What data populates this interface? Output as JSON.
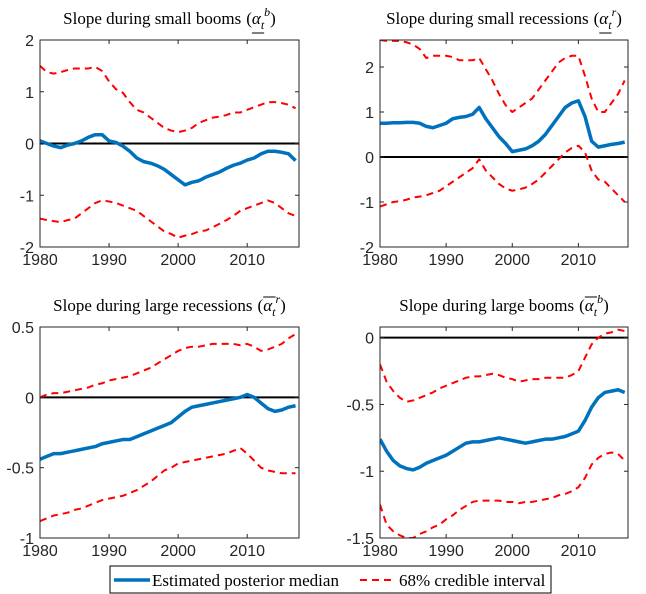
{
  "chart_data": [
    {
      "type": "line",
      "title": "Slope during small booms",
      "symbol": {
        "open": "(",
        "base": "α",
        "sub": "t",
        "sup": "b",
        "bar": "under",
        "close": ")"
      },
      "x": [
        1980,
        1981,
        1982,
        1983,
        1984,
        1985,
        1986,
        1987,
        1988,
        1989,
        1990,
        1991,
        1992,
        1993,
        1994,
        1995,
        1996,
        1997,
        1998,
        1999,
        2000,
        2001,
        2002,
        2003,
        2004,
        2005,
        2006,
        2007,
        2008,
        2009,
        2010,
        2011,
        2012,
        2013,
        2014,
        2015,
        2016,
        2017
      ],
      "xlim": [
        1980,
        2017.5
      ],
      "xticks": [
        1980,
        1990,
        2000,
        2010
      ],
      "ylim": [
        -2,
        2
      ],
      "yticks": [
        -2,
        -1,
        0,
        1,
        2
      ],
      "hline": 0,
      "series": [
        {
          "name": "Estimated posterior median",
          "color": "#0072bd",
          "values": [
            0.05,
            0,
            -0.05,
            -0.08,
            -0.03,
            0,
            0.05,
            0.12,
            0.17,
            0.17,
            0.05,
            0.02,
            -0.05,
            -0.15,
            -0.28,
            -0.35,
            -0.38,
            -0.43,
            -0.5,
            -0.6,
            -0.7,
            -0.8,
            -0.75,
            -0.72,
            -0.65,
            -0.6,
            -0.55,
            -0.48,
            -0.42,
            -0.38,
            -0.32,
            -0.28,
            -0.2,
            -0.15,
            -0.15,
            -0.17,
            -0.2,
            -0.33
          ]
        },
        {
          "name": "68% credible interval",
          "color": "#ff0000",
          "dashed": true,
          "upper": [
            1.5,
            1.38,
            1.35,
            1.38,
            1.42,
            1.45,
            1.45,
            1.45,
            1.48,
            1.4,
            1.2,
            1.05,
            0.98,
            0.8,
            0.65,
            0.6,
            0.5,
            0.4,
            0.3,
            0.25,
            0.22,
            0.25,
            0.3,
            0.4,
            0.45,
            0.5,
            0.52,
            0.55,
            0.6,
            0.6,
            0.65,
            0.7,
            0.75,
            0.8,
            0.8,
            0.78,
            0.75,
            0.68
          ],
          "lower": [
            -1.45,
            -1.48,
            -1.5,
            -1.52,
            -1.48,
            -1.45,
            -1.35,
            -1.25,
            -1.15,
            -1.1,
            -1.12,
            -1.15,
            -1.2,
            -1.25,
            -1.3,
            -1.4,
            -1.5,
            -1.6,
            -1.7,
            -1.75,
            -1.82,
            -1.78,
            -1.75,
            -1.7,
            -1.68,
            -1.62,
            -1.55,
            -1.48,
            -1.4,
            -1.3,
            -1.25,
            -1.2,
            -1.15,
            -1.1,
            -1.15,
            -1.25,
            -1.35,
            -1.4
          ]
        }
      ]
    },
    {
      "type": "line",
      "title": "Slope during small recessions",
      "symbol": {
        "open": "(",
        "base": "α",
        "sub": "t",
        "sup": "r",
        "bar": "under",
        "close": ")"
      },
      "x": [
        1980,
        1981,
        1982,
        1983,
        1984,
        1985,
        1986,
        1987,
        1988,
        1989,
        1990,
        1991,
        1992,
        1993,
        1994,
        1995,
        1996,
        1997,
        1998,
        1999,
        2000,
        2001,
        2002,
        2003,
        2004,
        2005,
        2006,
        2007,
        2008,
        2009,
        2010,
        2011,
        2012,
        2013,
        2014,
        2015,
        2016,
        2017
      ],
      "xlim": [
        1980,
        2017.5
      ],
      "xticks": [
        1980,
        1990,
        2000,
        2010
      ],
      "ylim": [
        -2,
        2.6
      ],
      "yticks": [
        -2,
        -1,
        0,
        1,
        2
      ],
      "hline": 0,
      "series": [
        {
          "name": "Estimated posterior median",
          "color": "#0072bd",
          "values": [
            0.75,
            0.75,
            0.76,
            0.76,
            0.77,
            0.77,
            0.75,
            0.68,
            0.65,
            0.7,
            0.75,
            0.85,
            0.88,
            0.9,
            0.95,
            1.1,
            0.85,
            0.65,
            0.45,
            0.3,
            0.12,
            0.15,
            0.18,
            0.25,
            0.35,
            0.5,
            0.7,
            0.9,
            1.1,
            1.2,
            1.25,
            0.9,
            0.35,
            0.22,
            0.25,
            0.28,
            0.3,
            0.33
          ]
        },
        {
          "name": "68% credible interval",
          "color": "#ff0000",
          "dashed": true,
          "upper": [
            2.6,
            2.58,
            2.58,
            2.58,
            2.55,
            2.5,
            2.4,
            2.2,
            2.25,
            2.25,
            2.25,
            2.22,
            2.15,
            2.15,
            2.15,
            2.2,
            1.95,
            1.7,
            1.4,
            1.15,
            1,
            1.1,
            1.2,
            1.3,
            1.5,
            1.7,
            1.9,
            2.1,
            2.2,
            2.25,
            2.25,
            1.8,
            1.3,
            1,
            1,
            1.2,
            1.4,
            1.7
          ],
          "lower": [
            -1.1,
            -1.05,
            -1,
            -0.98,
            -0.95,
            -0.9,
            -0.88,
            -0.85,
            -0.8,
            -0.75,
            -0.65,
            -0.55,
            -0.45,
            -0.35,
            -0.25,
            -0.05,
            -0.3,
            -0.45,
            -0.6,
            -0.7,
            -0.75,
            -0.72,
            -0.68,
            -0.6,
            -0.5,
            -0.35,
            -0.2,
            -0.05,
            0.1,
            0.2,
            0.25,
            0.1,
            -0.3,
            -0.5,
            -0.55,
            -0.7,
            -0.85,
            -1
          ]
        }
      ]
    },
    {
      "type": "line",
      "title": "Slope during large recessions",
      "symbol": {
        "open": "(",
        "base": "α",
        "sub": "t",
        "sup": "r",
        "bar": "over",
        "close": ")"
      },
      "x": [
        1980,
        1981,
        1982,
        1983,
        1984,
        1985,
        1986,
        1987,
        1988,
        1989,
        1990,
        1991,
        1992,
        1993,
        1994,
        1995,
        1996,
        1997,
        1998,
        1999,
        2000,
        2001,
        2002,
        2003,
        2004,
        2005,
        2006,
        2007,
        2008,
        2009,
        2010,
        2011,
        2012,
        2013,
        2014,
        2015,
        2016,
        2017
      ],
      "xlim": [
        1980,
        2017.5
      ],
      "xticks": [
        1980,
        1990,
        2000,
        2010
      ],
      "ylim": [
        -1,
        0.5
      ],
      "yticks": [
        -1,
        -0.5,
        0,
        0.5
      ],
      "hline": 0,
      "series": [
        {
          "name": "Estimated posterior median",
          "color": "#0072bd",
          "values": [
            -0.44,
            -0.42,
            -0.4,
            -0.4,
            -0.39,
            -0.38,
            -0.37,
            -0.36,
            -0.35,
            -0.33,
            -0.32,
            -0.31,
            -0.3,
            -0.3,
            -0.28,
            -0.26,
            -0.24,
            -0.22,
            -0.2,
            -0.18,
            -0.14,
            -0.1,
            -0.07,
            -0.06,
            -0.05,
            -0.04,
            -0.03,
            -0.02,
            -0.01,
            0,
            0.02,
            0,
            -0.04,
            -0.08,
            -0.1,
            -0.09,
            -0.07,
            -0.06
          ]
        },
        {
          "name": "68% credible interval",
          "color": "#ff0000",
          "dashed": true,
          "upper": [
            0,
            0.02,
            0.03,
            0.03,
            0.04,
            0.05,
            0.06,
            0.07,
            0.09,
            0.1,
            0.12,
            0.13,
            0.14,
            0.15,
            0.17,
            0.19,
            0.21,
            0.24,
            0.27,
            0.3,
            0.33,
            0.35,
            0.36,
            0.36,
            0.37,
            0.38,
            0.38,
            0.38,
            0.38,
            0.37,
            0.38,
            0.36,
            0.33,
            0.34,
            0.36,
            0.38,
            0.42,
            0.45
          ],
          "lower": [
            -0.88,
            -0.86,
            -0.84,
            -0.83,
            -0.82,
            -0.8,
            -0.79,
            -0.77,
            -0.75,
            -0.73,
            -0.72,
            -0.71,
            -0.7,
            -0.68,
            -0.66,
            -0.63,
            -0.6,
            -0.56,
            -0.52,
            -0.5,
            -0.47,
            -0.46,
            -0.45,
            -0.44,
            -0.43,
            -0.42,
            -0.41,
            -0.4,
            -0.38,
            -0.36,
            -0.4,
            -0.45,
            -0.5,
            -0.52,
            -0.53,
            -0.54,
            -0.54,
            -0.54
          ]
        }
      ]
    },
    {
      "type": "line",
      "title": "Slope during large booms",
      "symbol": {
        "open": "(",
        "base": "α",
        "sub": "t",
        "sup": "b",
        "bar": "over",
        "close": ")"
      },
      "x": [
        1980,
        1981,
        1982,
        1983,
        1984,
        1985,
        1986,
        1987,
        1988,
        1989,
        1990,
        1991,
        1992,
        1993,
        1994,
        1995,
        1996,
        1997,
        1998,
        1999,
        2000,
        2001,
        2002,
        2003,
        2004,
        2005,
        2006,
        2007,
        2008,
        2009,
        2010,
        2011,
        2012,
        2013,
        2014,
        2015,
        2016,
        2017
      ],
      "xlim": [
        1980,
        2017.5
      ],
      "xticks": [
        1980,
        1990,
        2000,
        2010
      ],
      "ylim": [
        -1.5,
        0.08
      ],
      "yticks": [
        -1.5,
        -1,
        -0.5,
        0
      ],
      "hline": 0,
      "series": [
        {
          "name": "Estimated posterior median",
          "color": "#0072bd",
          "values": [
            -0.76,
            -0.85,
            -0.92,
            -0.96,
            -0.98,
            -0.99,
            -0.97,
            -0.94,
            -0.92,
            -0.9,
            -0.88,
            -0.85,
            -0.82,
            -0.79,
            -0.78,
            -0.78,
            -0.77,
            -0.76,
            -0.75,
            -0.76,
            -0.77,
            -0.78,
            -0.79,
            -0.78,
            -0.77,
            -0.76,
            -0.76,
            -0.75,
            -0.74,
            -0.72,
            -0.7,
            -0.62,
            -0.52,
            -0.45,
            -0.41,
            -0.4,
            -0.39,
            -0.41
          ]
        },
        {
          "name": "68% credible interval",
          "color": "#ff0000",
          "dashed": true,
          "upper": [
            -0.2,
            -0.33,
            -0.4,
            -0.45,
            -0.48,
            -0.47,
            -0.45,
            -0.43,
            -0.41,
            -0.38,
            -0.36,
            -0.34,
            -0.32,
            -0.3,
            -0.29,
            -0.29,
            -0.28,
            -0.27,
            -0.28,
            -0.3,
            -0.31,
            -0.33,
            -0.32,
            -0.31,
            -0.31,
            -0.3,
            -0.3,
            -0.3,
            -0.3,
            -0.28,
            -0.25,
            -0.15,
            -0.05,
            0,
            0.03,
            0.04,
            0.06,
            0.05
          ],
          "lower": [
            -1.25,
            -1.4,
            -1.45,
            -1.48,
            -1.5,
            -1.5,
            -1.47,
            -1.45,
            -1.42,
            -1.4,
            -1.36,
            -1.33,
            -1.29,
            -1.26,
            -1.23,
            -1.22,
            -1.22,
            -1.22,
            -1.22,
            -1.23,
            -1.23,
            -1.24,
            -1.23,
            -1.23,
            -1.22,
            -1.21,
            -1.2,
            -1.18,
            -1.17,
            -1.15,
            -1.12,
            -1.05,
            -0.95,
            -0.9,
            -0.87,
            -0.86,
            -0.87,
            -0.92
          ]
        }
      ]
    }
  ]
}
